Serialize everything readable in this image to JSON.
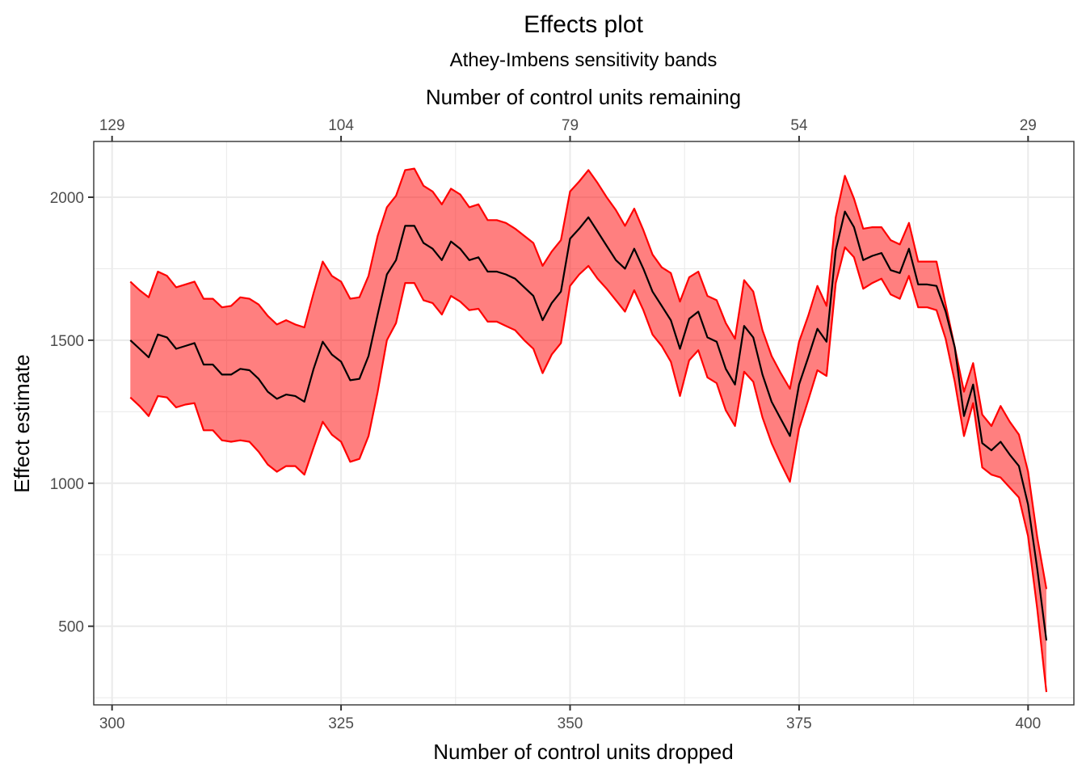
{
  "chart_data": {
    "type": "line",
    "title": "Effects plot",
    "subtitle": "Athey-Imbens sensitivity bands",
    "xlabel": "Number of control units dropped",
    "ylabel": "Effect estimate",
    "x2label": "Number of control units remaining",
    "xlim": [
      298,
      405
    ],
    "ylim": [
      225,
      2195
    ],
    "x_ticks": [
      300,
      325,
      350,
      375,
      400
    ],
    "x_tick_labels": [
      "300",
      "325",
      "350",
      "375",
      "400"
    ],
    "y_ticks": [
      500,
      1000,
      1500,
      2000
    ],
    "y_tick_labels": [
      "500",
      "1000",
      "1500",
      "2000"
    ],
    "x2_tick_labels": [
      "129",
      "104",
      "79",
      "54",
      "29"
    ],
    "grid": true,
    "colors": {
      "band_fill": "#ff0000",
      "band_stroke": "#ff0000",
      "estimate_line": "#000000"
    },
    "x": [
      302,
      303,
      304,
      305,
      306,
      307,
      308,
      309,
      310,
      311,
      312,
      313,
      314,
      315,
      316,
      317,
      318,
      319,
      320,
      321,
      322,
      323,
      324,
      325,
      326,
      327,
      328,
      329,
      330,
      331,
      332,
      333,
      334,
      335,
      336,
      337,
      338,
      339,
      340,
      341,
      342,
      343,
      344,
      345,
      346,
      347,
      348,
      349,
      350,
      351,
      352,
      353,
      354,
      355,
      356,
      357,
      358,
      359,
      360,
      361,
      362,
      363,
      364,
      365,
      366,
      367,
      368,
      369,
      370,
      371,
      372,
      373,
      374,
      375,
      376,
      377,
      378,
      379,
      380,
      381,
      382,
      383,
      384,
      385,
      386,
      387,
      388,
      389,
      390,
      391,
      392,
      393,
      394,
      395,
      396,
      397,
      398,
      399,
      400,
      401,
      402
    ],
    "series": [
      {
        "role": "estimate",
        "values": [
          1500,
          1470,
          1440,
          1520,
          1510,
          1470,
          1480,
          1490,
          1415,
          1415,
          1380,
          1380,
          1400,
          1395,
          1365,
          1320,
          1295,
          1310,
          1305,
          1285,
          1400,
          1495,
          1450,
          1425,
          1360,
          1365,
          1445,
          1590,
          1730,
          1780,
          1900,
          1900,
          1840,
          1820,
          1780,
          1845,
          1820,
          1780,
          1790,
          1740,
          1740,
          1730,
          1715,
          1685,
          1655,
          1570,
          1630,
          1670,
          1855,
          1890,
          1930,
          1880,
          1830,
          1780,
          1750,
          1820,
          1750,
          1670,
          1620,
          1570,
          1470,
          1575,
          1600,
          1510,
          1495,
          1400,
          1345,
          1550,
          1510,
          1380,
          1285,
          1225,
          1165,
          1345,
          1440,
          1540,
          1495,
          1815,
          1950,
          1895,
          1780,
          1795,
          1805,
          1745,
          1735,
          1820,
          1695,
          1695,
          1690,
          1600,
          1475,
          1235,
          1345,
          1140,
          1115,
          1145,
          1100,
          1060,
          925,
          700,
          450
        ]
      },
      {
        "role": "band-upper",
        "values": [
          1705,
          1675,
          1650,
          1740,
          1725,
          1685,
          1695,
          1705,
          1645,
          1645,
          1615,
          1620,
          1650,
          1645,
          1625,
          1585,
          1555,
          1570,
          1555,
          1545,
          1665,
          1775,
          1725,
          1705,
          1645,
          1650,
          1725,
          1865,
          1965,
          2005,
          2095,
          2100,
          2040,
          2020,
          1975,
          2030,
          2010,
          1965,
          1975,
          1920,
          1920,
          1910,
          1890,
          1865,
          1840,
          1760,
          1810,
          1850,
          2020,
          2055,
          2095,
          2050,
          2000,
          1955,
          1900,
          1960,
          1885,
          1800,
          1755,
          1735,
          1635,
          1720,
          1740,
          1655,
          1640,
          1560,
          1505,
          1710,
          1670,
          1535,
          1445,
          1385,
          1330,
          1495,
          1585,
          1690,
          1620,
          1930,
          2075,
          1995,
          1890,
          1895,
          1895,
          1850,
          1835,
          1910,
          1775,
          1775,
          1775,
          1625,
          1475,
          1320,
          1420,
          1240,
          1200,
          1270,
          1215,
          1170,
          1040,
          810,
          630
        ]
      },
      {
        "role": "band-lower",
        "values": [
          1300,
          1270,
          1235,
          1305,
          1300,
          1265,
          1275,
          1280,
          1185,
          1185,
          1150,
          1145,
          1150,
          1145,
          1110,
          1065,
          1040,
          1060,
          1060,
          1030,
          1125,
          1215,
          1170,
          1145,
          1075,
          1085,
          1165,
          1320,
          1500,
          1560,
          1700,
          1700,
          1640,
          1630,
          1590,
          1655,
          1635,
          1605,
          1610,
          1565,
          1565,
          1550,
          1535,
          1500,
          1470,
          1385,
          1450,
          1490,
          1690,
          1730,
          1760,
          1715,
          1680,
          1640,
          1600,
          1675,
          1605,
          1520,
          1480,
          1425,
          1305,
          1430,
          1465,
          1370,
          1350,
          1255,
          1200,
          1390,
          1355,
          1230,
          1140,
          1070,
          1005,
          1190,
          1290,
          1395,
          1375,
          1700,
          1825,
          1790,
          1680,
          1700,
          1715,
          1660,
          1645,
          1725,
          1615,
          1615,
          1605,
          1505,
          1355,
          1165,
          1280,
          1055,
          1030,
          1020,
          985,
          950,
          815,
          560,
          270
        ]
      }
    ]
  }
}
